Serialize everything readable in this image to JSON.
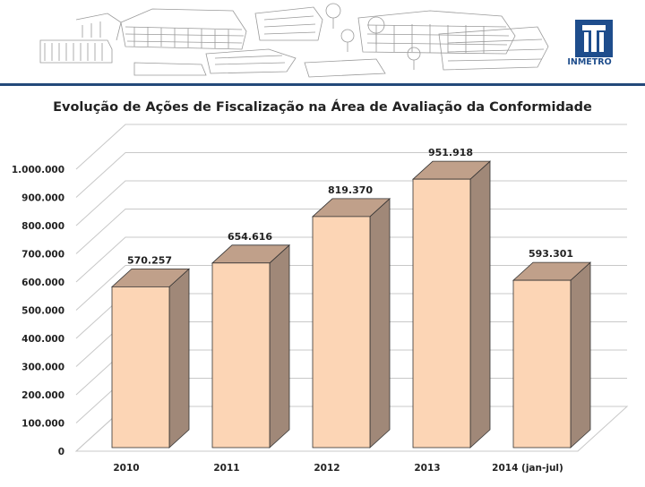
{
  "logo": {
    "text": "INMETRO"
  },
  "colors": {
    "header_line": "#23497a",
    "logo_blue": "#1e4d8c",
    "bar_front": "#fcd5b5",
    "bar_top": "#c0a08a",
    "bar_side": "#a08878",
    "wall": "#ffffff",
    "grid": "#c8c8c8"
  },
  "chart_data": {
    "type": "bar",
    "title": "Evolução de Ações de Fiscalização na Área de Avaliação da Conformidade",
    "categories": [
      "2010",
      "2011",
      "2012",
      "2013",
      "2014 (jan-jul)"
    ],
    "values": [
      570257,
      654616,
      819370,
      951918,
      593301
    ],
    "value_labels": [
      "570.257",
      "654.616",
      "819.370",
      "951.918",
      "593.301"
    ],
    "ylim": [
      0,
      1000000
    ],
    "yticks": [
      0,
      100000,
      200000,
      300000,
      400000,
      500000,
      600000,
      700000,
      800000,
      900000,
      1000000
    ],
    "ytick_labels": [
      "0",
      "100.000",
      "200.000",
      "300.000",
      "400.000",
      "500.000",
      "600.000",
      "700.000",
      "800.000",
      "900.000",
      "1.000.000"
    ],
    "xlabel": "",
    "ylabel": "",
    "grid": true,
    "legend": "none"
  }
}
